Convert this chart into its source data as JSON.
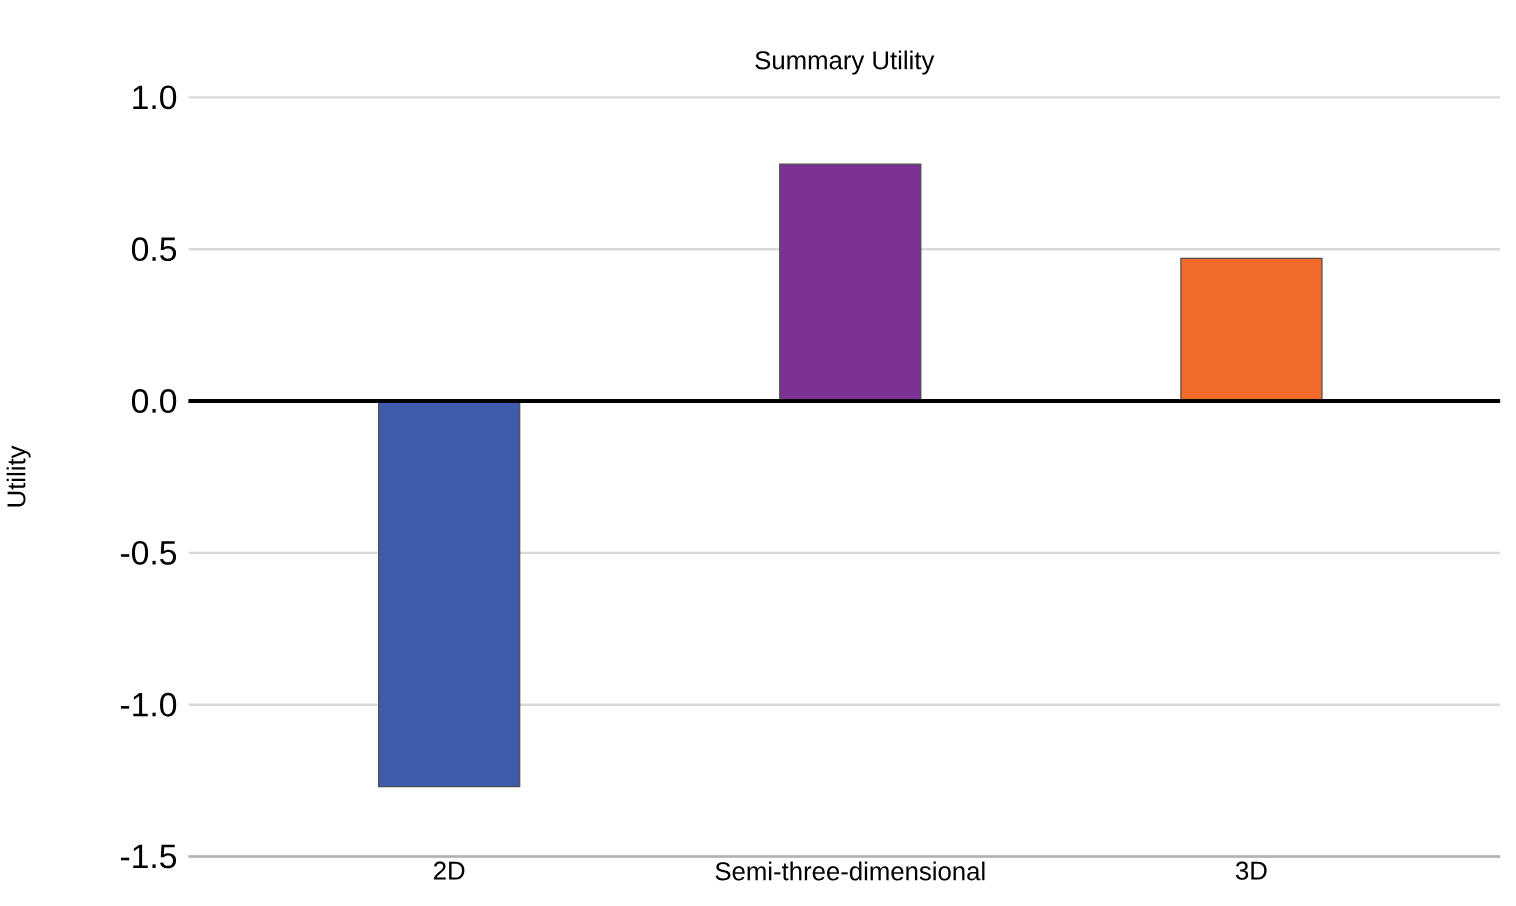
{
  "chart_data": {
    "type": "bar",
    "title": "Summary Utility",
    "ylabel": "Utility",
    "categories": [
      "2D",
      "Semi-three-dimensional",
      "3D"
    ],
    "values": [
      -1.27,
      0.78,
      0.47
    ],
    "colors": [
      "#3f5bab",
      "#7b3294",
      "#f26a2a"
    ],
    "ylim": [
      -1.5,
      1
    ],
    "yticks": [
      {
        "value": -1.5,
        "label": "-1.5"
      },
      {
        "value": -1,
        "label": "-1.0"
      },
      {
        "value": -0.5,
        "label": "-0.5"
      },
      {
        "value": 0,
        "label": "0.0"
      },
      {
        "value": 0.5,
        "label": "0.5"
      },
      {
        "value": 1,
        "label": "1.0"
      }
    ],
    "grid": "y",
    "ref_lines": [
      {
        "axis": "y",
        "value": 0,
        "color": "#000000"
      }
    ]
  }
}
